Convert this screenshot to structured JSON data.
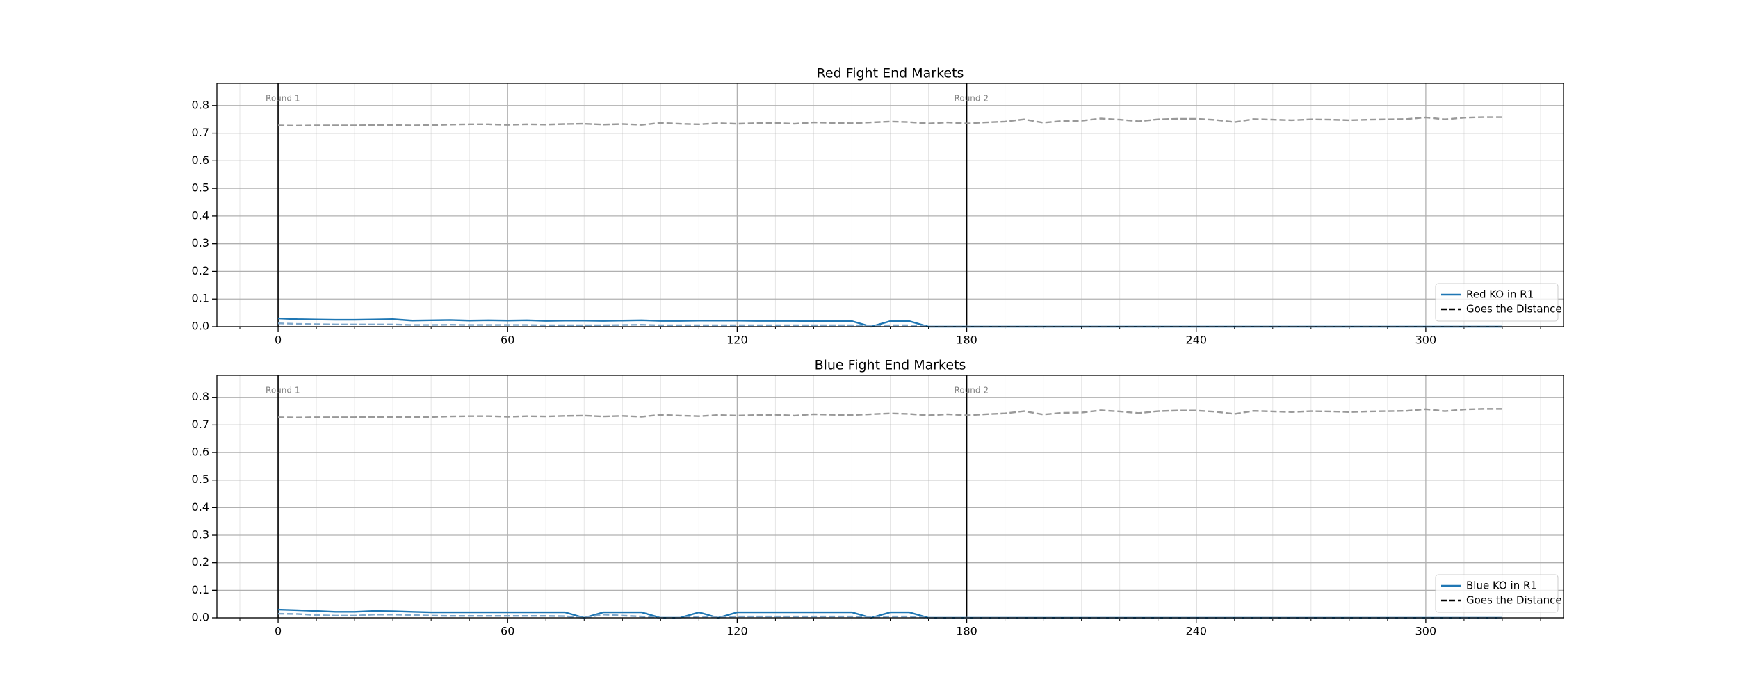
{
  "chart_data": [
    {
      "type": "line",
      "title": "Red Fight End Markets",
      "grid": true,
      "legend": "lower right",
      "xlim": [
        -16,
        336
      ],
      "ylim": [
        0,
        0.88
      ],
      "xticks": [
        0,
        60,
        120,
        180,
        240,
        300
      ],
      "xminorticks": [
        -10,
        10,
        20,
        30,
        40,
        50,
        70,
        80,
        90,
        100,
        110,
        130,
        140,
        150,
        160,
        170,
        190,
        200,
        210,
        220,
        230,
        250,
        260,
        270,
        280,
        290,
        310,
        320,
        330
      ],
      "yticks": [
        {
          "value": 0,
          "label": "0.0"
        },
        0.1,
        0.2,
        0.3,
        0.4,
        0.5,
        0.6,
        0.7,
        0.8
      ],
      "annotations": [
        {
          "x": 0,
          "text": "Round 1"
        },
        {
          "x": 180,
          "text": "Round 2"
        }
      ],
      "x": [
        0,
        5,
        10,
        15,
        20,
        25,
        30,
        35,
        40,
        45,
        50,
        55,
        60,
        65,
        70,
        75,
        80,
        85,
        90,
        95,
        100,
        105,
        110,
        115,
        120,
        125,
        130,
        135,
        140,
        145,
        150,
        155,
        160,
        165,
        170,
        175,
        180,
        185,
        190,
        195,
        200,
        205,
        210,
        215,
        220,
        225,
        230,
        235,
        240,
        245,
        250,
        255,
        260,
        265,
        270,
        275,
        280,
        285,
        290,
        295,
        300,
        305,
        310,
        315,
        320
      ],
      "series": [
        {
          "name": "Red KO in R1",
          "color": "#1f77b4",
          "dash": false,
          "values": [
            0.03,
            0.027,
            0.026,
            0.025,
            0.025,
            0.026,
            0.027,
            0.022,
            0.023,
            0.024,
            0.022,
            0.023,
            0.022,
            0.023,
            0.021,
            0.022,
            0.022,
            0.021,
            0.022,
            0.023,
            0.021,
            0.021,
            0.022,
            0.022,
            0.022,
            0.021,
            0.021,
            0.021,
            0.02,
            0.021,
            0.02,
            0,
            0.02,
            0.02,
            0,
            0,
            0,
            0,
            0,
            0,
            0,
            0,
            0,
            0,
            0,
            0,
            0,
            0,
            0,
            0,
            0,
            0,
            0,
            0,
            0,
            0,
            0,
            0,
            0,
            0,
            0,
            0,
            0,
            0,
            0
          ]
        },
        {
          "name": "Goes the Distance",
          "color": "#999999",
          "legend_color": "#000000",
          "dash": true,
          "values": [
            0.728,
            0.727,
            0.728,
            0.728,
            0.728,
            0.729,
            0.729,
            0.728,
            0.729,
            0.731,
            0.732,
            0.732,
            0.73,
            0.732,
            0.731,
            0.733,
            0.734,
            0.731,
            0.733,
            0.73,
            0.737,
            0.734,
            0.732,
            0.736,
            0.734,
            0.736,
            0.737,
            0.734,
            0.739,
            0.737,
            0.736,
            0.739,
            0.742,
            0.74,
            0.735,
            0.739,
            0.735,
            0.739,
            0.742,
            0.75,
            0.738,
            0.744,
            0.745,
            0.753,
            0.749,
            0.743,
            0.75,
            0.752,
            0.752,
            0.748,
            0.74,
            0.751,
            0.749,
            0.747,
            0.75,
            0.749,
            0.747,
            0.749,
            0.75,
            0.751,
            0.757,
            0.75,
            0.756,
            0.758,
            0.758
          ]
        },
        {
          "color": "#7fa8cc",
          "dash": true,
          "values": [
            0.012,
            0.01,
            0.009,
            0.008,
            0.008,
            0.008,
            0.008,
            0.006,
            0.006,
            0.007,
            0.006,
            0.006,
            0.006,
            0.006,
            0.005,
            0.005,
            0.005,
            0.005,
            0.006,
            0.007,
            0.005,
            0.005,
            0.005,
            0.005,
            0.005,
            0.005,
            0.005,
            0.005,
            0.005,
            0.005,
            0.005,
            0.004,
            0.005,
            0.005,
            0,
            0,
            0,
            0,
            0,
            0,
            0,
            0,
            0,
            0,
            0,
            0,
            0,
            0,
            0,
            0,
            0,
            0,
            0,
            0,
            0,
            0,
            0,
            0,
            0,
            0,
            0,
            0,
            0,
            0,
            0
          ]
        }
      ]
    },
    {
      "type": "line",
      "title": "Blue Fight End Markets",
      "grid": true,
      "legend": "lower right",
      "xlim": [
        -16,
        336
      ],
      "ylim": [
        0,
        0.88
      ],
      "xticks": [
        0,
        60,
        120,
        180,
        240,
        300
      ],
      "xminorticks": [
        -10,
        10,
        20,
        30,
        40,
        50,
        70,
        80,
        90,
        100,
        110,
        130,
        140,
        150,
        160,
        170,
        190,
        200,
        210,
        220,
        230,
        250,
        260,
        270,
        280,
        290,
        310,
        320,
        330
      ],
      "yticks": [
        {
          "value": 0,
          "label": "0.0"
        },
        0.1,
        0.2,
        0.3,
        0.4,
        0.5,
        0.6,
        0.7,
        0.8
      ],
      "annotations": [
        {
          "x": 0,
          "text": "Round 1"
        },
        {
          "x": 180,
          "text": "Round 2"
        }
      ],
      "x": [
        0,
        5,
        10,
        15,
        20,
        25,
        30,
        35,
        40,
        45,
        50,
        55,
        60,
        65,
        70,
        75,
        80,
        85,
        90,
        95,
        100,
        105,
        110,
        115,
        120,
        125,
        130,
        135,
        140,
        145,
        150,
        155,
        160,
        165,
        170,
        175,
        180,
        185,
        190,
        195,
        200,
        205,
        210,
        215,
        220,
        225,
        230,
        235,
        240,
        245,
        250,
        255,
        260,
        265,
        270,
        275,
        280,
        285,
        290,
        295,
        300,
        305,
        310,
        315,
        320
      ],
      "series": [
        {
          "name": "Blue KO in R1",
          "color": "#1f77b4",
          "dash": false,
          "values": [
            0.03,
            0.028,
            0.025,
            0.022,
            0.022,
            0.025,
            0.024,
            0.022,
            0.02,
            0.02,
            0.02,
            0.02,
            0.02,
            0.02,
            0.02,
            0.02,
            0,
            0.02,
            0.02,
            0.02,
            0,
            0,
            0.02,
            0,
            0.02,
            0.02,
            0.02,
            0.02,
            0.02,
            0.02,
            0.02,
            0,
            0.02,
            0.02,
            0,
            0,
            0,
            0,
            0,
            0,
            0,
            0,
            0,
            0,
            0,
            0,
            0,
            0,
            0,
            0,
            0,
            0,
            0,
            0,
            0,
            0,
            0,
            0,
            0,
            0,
            0,
            0,
            0,
            0,
            0
          ]
        },
        {
          "name": "Goes the Distance",
          "color": "#999999",
          "legend_color": "#000000",
          "dash": true,
          "values": [
            0.728,
            0.727,
            0.728,
            0.728,
            0.728,
            0.729,
            0.729,
            0.728,
            0.729,
            0.731,
            0.732,
            0.732,
            0.73,
            0.732,
            0.731,
            0.733,
            0.734,
            0.731,
            0.733,
            0.73,
            0.737,
            0.734,
            0.732,
            0.736,
            0.734,
            0.736,
            0.737,
            0.734,
            0.739,
            0.737,
            0.736,
            0.739,
            0.742,
            0.74,
            0.735,
            0.739,
            0.735,
            0.739,
            0.742,
            0.75,
            0.738,
            0.744,
            0.745,
            0.753,
            0.749,
            0.743,
            0.75,
            0.752,
            0.752,
            0.748,
            0.74,
            0.751,
            0.749,
            0.747,
            0.75,
            0.749,
            0.747,
            0.749,
            0.75,
            0.751,
            0.757,
            0.75,
            0.756,
            0.758,
            0.758
          ]
        },
        {
          "color": "#7fa8cc",
          "dash": true,
          "values": [
            0.015,
            0.014,
            0.01,
            0.008,
            0.008,
            0.012,
            0.012,
            0.01,
            0.008,
            0.007,
            0.007,
            0.007,
            0.007,
            0.007,
            0.007,
            0.006,
            0,
            0.012,
            0.008,
            0.005,
            0,
            0,
            0.005,
            0.003,
            0.005,
            0.005,
            0.005,
            0.005,
            0.005,
            0.005,
            0.005,
            0.003,
            0.005,
            0.005,
            0,
            0,
            0,
            0,
            0,
            0,
            0,
            0,
            0,
            0,
            0,
            0,
            0,
            0,
            0,
            0,
            0,
            0,
            0,
            0,
            0,
            0,
            0,
            0,
            0,
            0,
            0,
            0,
            0,
            0,
            0
          ]
        }
      ]
    }
  ]
}
